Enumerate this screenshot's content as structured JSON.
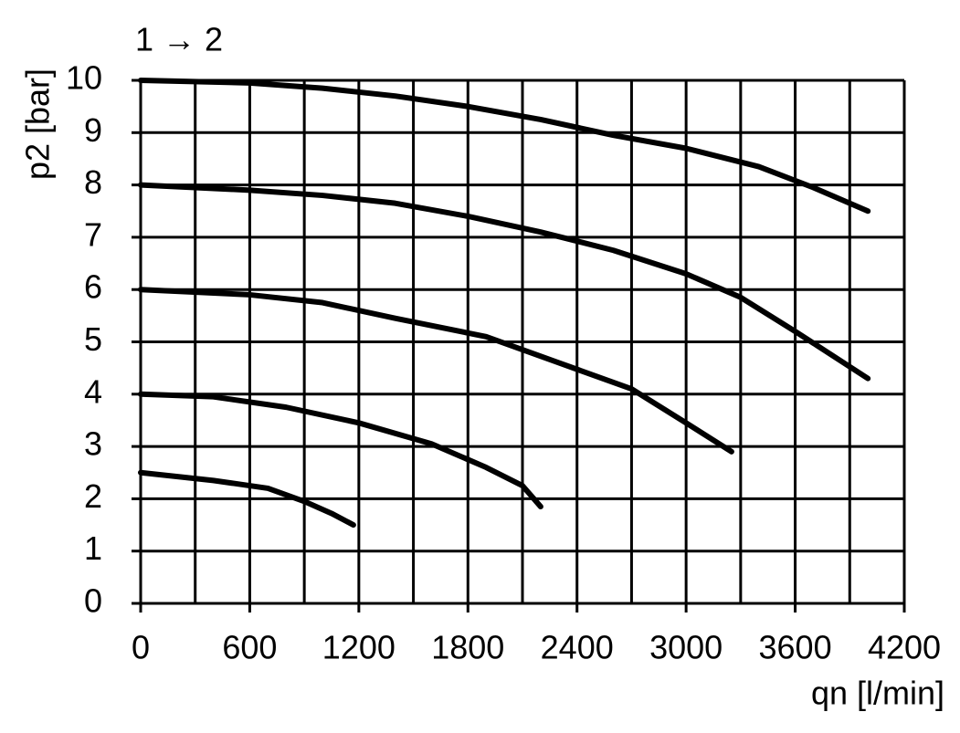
{
  "chart_data": {
    "type": "line",
    "title": "1 → 2",
    "y_label": "p2 [bar]",
    "x_label": "qn [l/min]",
    "xlim": [
      0,
      4200
    ],
    "xticks": [
      0,
      600,
      1200,
      1800,
      2400,
      3000,
      3600,
      4200
    ],
    "x_minor_ticks": [
      300,
      900,
      1500,
      2100,
      2700,
      3300,
      3900
    ],
    "ylim": [
      0,
      10
    ],
    "yticks": [
      0,
      1,
      2,
      3,
      4,
      5,
      6,
      7,
      8,
      9,
      10
    ],
    "grid": true,
    "color": "#000000",
    "series": [
      {
        "x": [
          0,
          600,
          1000,
          1400,
          1800,
          2200,
          2600,
          3000,
          3400,
          3700,
          4000
        ],
        "values": [
          10,
          9.95,
          9.85,
          9.7,
          9.5,
          9.25,
          8.95,
          8.7,
          8.35,
          7.95,
          7.5
        ]
      },
      {
        "x": [
          0,
          600,
          1000,
          1400,
          1800,
          2200,
          2600,
          3000,
          3300,
          3600,
          4000
        ],
        "values": [
          8,
          7.9,
          7.8,
          7.65,
          7.4,
          7.1,
          6.75,
          6.3,
          5.85,
          5.2,
          4.3
        ]
      },
      {
        "x": [
          0,
          600,
          1000,
          1400,
          1900,
          2300,
          2700,
          3000,
          3250
        ],
        "values": [
          6,
          5.9,
          5.75,
          5.45,
          5.1,
          4.6,
          4.1,
          3.45,
          2.9
        ]
      },
      {
        "x": [
          0,
          400,
          800,
          1200,
          1600,
          1900,
          2100,
          2200
        ],
        "values": [
          4,
          3.95,
          3.75,
          3.45,
          3.05,
          2.6,
          2.25,
          1.85
        ]
      },
      {
        "x": [
          0,
          400,
          700,
          900,
          1050,
          1170
        ],
        "values": [
          2.5,
          2.35,
          2.2,
          1.95,
          1.72,
          1.5
        ]
      }
    ]
  }
}
